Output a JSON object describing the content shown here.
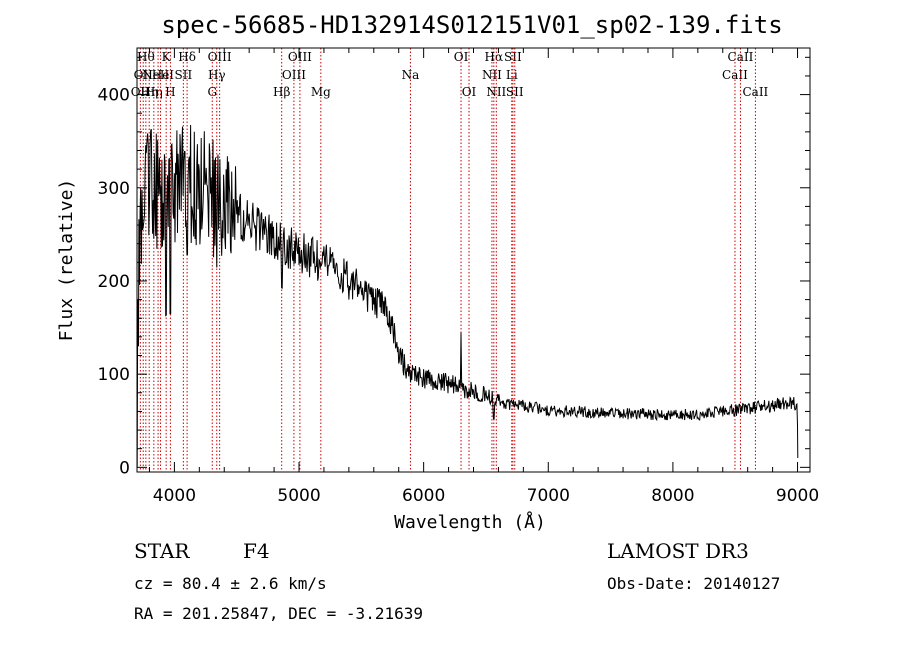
{
  "colors": {
    "line_marker": "#cc0000",
    "spectrum": "#000000",
    "axis": "#000000"
  },
  "chart_data": {
    "type": "line",
    "title": "spec-56685-HD132914S012151V01_sp02-139.fits",
    "xlabel": "Wavelength (Å)",
    "ylabel": "Flux (relative)",
    "xlim": [
      3700,
      9100
    ],
    "ylim": [
      -5,
      450
    ],
    "xticks": [
      4000,
      5000,
      6000,
      7000,
      8000,
      9000
    ],
    "yticks": [
      0,
      100,
      200,
      300,
      400
    ],
    "continuum_points": [
      [
        3700,
        200
      ],
      [
        3720,
        240
      ],
      [
        3750,
        300
      ],
      [
        3800,
        310
      ],
      [
        3850,
        300
      ],
      [
        3900,
        290
      ],
      [
        3950,
        300
      ],
      [
        4000,
        300
      ],
      [
        4100,
        305
      ],
      [
        4200,
        300
      ],
      [
        4300,
        290
      ],
      [
        4400,
        280
      ],
      [
        4500,
        270
      ],
      [
        4600,
        260
      ],
      [
        4700,
        255
      ],
      [
        4800,
        245
      ],
      [
        4900,
        238
      ],
      [
        5000,
        232
      ],
      [
        5100,
        225
      ],
      [
        5200,
        220
      ],
      [
        5300,
        210
      ],
      [
        5400,
        200
      ],
      [
        5500,
        190
      ],
      [
        5600,
        180
      ],
      [
        5700,
        170
      ],
      [
        5750,
        150
      ],
      [
        5800,
        120
      ],
      [
        5850,
        110
      ],
      [
        5900,
        100
      ],
      [
        6000,
        95
      ],
      [
        6100,
        92
      ],
      [
        6200,
        90
      ],
      [
        6300,
        85
      ],
      [
        6400,
        82
      ],
      [
        6500,
        78
      ],
      [
        6600,
        72
      ],
      [
        6700,
        68
      ],
      [
        6800,
        66
      ],
      [
        6900,
        64
      ],
      [
        7000,
        62
      ],
      [
        7200,
        60
      ],
      [
        7400,
        58
      ],
      [
        7600,
        58
      ],
      [
        7800,
        57
      ],
      [
        8000,
        56
      ],
      [
        8200,
        57
      ],
      [
        8400,
        60
      ],
      [
        8600,
        63
      ],
      [
        8800,
        67
      ],
      [
        8950,
        70
      ],
      [
        9000,
        68
      ]
    ],
    "spectral_lines": [
      {
        "wavelength": 3727,
        "label": "OII",
        "row": 2
      },
      {
        "wavelength": 3750,
        "label": "OII",
        "row": 1
      },
      {
        "wavelength": 3771,
        "label": "Hθ",
        "row": 0
      },
      {
        "wavelength": 3798,
        "label": "Hη",
        "row": 2
      },
      {
        "wavelength": 3835,
        "label": "Hη",
        "row": 2
      },
      {
        "wavelength": 3869,
        "label": "NeIII",
        "row": 1
      },
      {
        "wavelength": 3889,
        "label": "He",
        "row": 1
      },
      {
        "wavelength": 3934,
        "label": "K",
        "row": 0
      },
      {
        "wavelength": 3968,
        "label": "H",
        "row": 2
      },
      {
        "wavelength": 4072,
        "label": "SII",
        "row": 1
      },
      {
        "wavelength": 4102,
        "label": "Hδ",
        "row": 0
      },
      {
        "wavelength": 4304,
        "label": "G",
        "row": 2
      },
      {
        "wavelength": 4340,
        "label": "Hγ",
        "row": 1
      },
      {
        "wavelength": 4363,
        "label": "OIII",
        "row": 0
      },
      {
        "wavelength": 4861,
        "label": "Hβ",
        "row": 2
      },
      {
        "wavelength": 4959,
        "label": "OIII",
        "row": 1
      },
      {
        "wavelength": 5007,
        "label": "OIII",
        "row": 0
      },
      {
        "wavelength": 5175,
        "label": "Mg",
        "row": 2
      },
      {
        "wavelength": 5894,
        "label": "Na",
        "row": 1
      },
      {
        "wavelength": 6300,
        "label": "OI",
        "row": 0
      },
      {
        "wavelength": 6364,
        "label": "OI",
        "row": 2
      },
      {
        "wavelength": 6548,
        "label": "NII",
        "row": 1
      },
      {
        "wavelength": 6563,
        "label": "Hα",
        "row": 0
      },
      {
        "wavelength": 6583,
        "label": "NII",
        "row": 2
      },
      {
        "wavelength": 6707,
        "label": "Li",
        "row": 1
      },
      {
        "wavelength": 6716,
        "label": "SII",
        "row": 0
      },
      {
        "wavelength": 6731,
        "label": "SII",
        "row": 2
      },
      {
        "wavelength": 8498,
        "label": "CaII",
        "row": 1
      },
      {
        "wavelength": 8542,
        "label": "CaII",
        "row": 0
      },
      {
        "wavelength": 8662,
        "label": "CaII",
        "row": 2
      }
    ]
  },
  "info": {
    "class": "STAR",
    "subclass": "F4",
    "survey": "LAMOST DR3",
    "cz": "cz = 80.4 ± 2.6 km/s",
    "obsdate": "Obs-Date: 20140127",
    "radec": "RA = 201.25847, DEC =  -3.21639"
  }
}
